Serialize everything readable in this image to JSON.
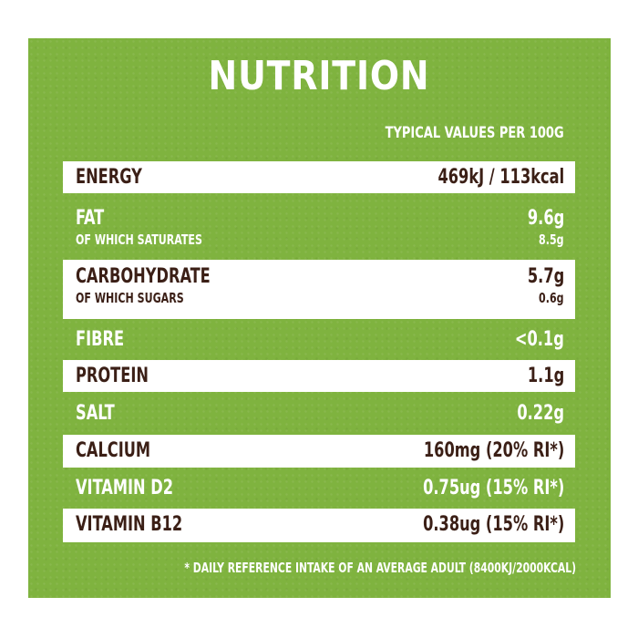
{
  "title": "NUTRITION",
  "subheading": "TYPICAL VALUES PER 100G",
  "rows": [
    {
      "label": "ENERGY",
      "value": "469kJ / 113kcal"
    },
    {
      "label": "FAT",
      "value": "9.6g",
      "sub_label": "OF WHICH SATURATES",
      "sub_value": "8.5g"
    },
    {
      "label": "CARBOHYDRATE",
      "value": "5.7g",
      "sub_label": "OF WHICH SUGARS",
      "sub_value": "0.6g"
    },
    {
      "label": "FIBRE",
      "value": "<0.1g"
    },
    {
      "label": "PROTEIN",
      "value": "1.1g"
    },
    {
      "label": "SALT",
      "value": "0.22g"
    },
    {
      "label": "CALCIUM",
      "value": "160mg (20% RI*)"
    },
    {
      "label": "VITAMIN D2",
      "value": "0.75ug (15% RI*)"
    },
    {
      "label": "VITAMIN B12",
      "value": "0.38ug (15% RI*)"
    }
  ],
  "footnote": "* DAILY REFERENCE INTAKE OF AN AVERAGE ADULT (8400KJ/2000KCAL)",
  "colors": {
    "panel": "#7fb33f",
    "row": "#ffffff",
    "text_dark": "#3b1f16",
    "text_light": "#ffffff"
  }
}
